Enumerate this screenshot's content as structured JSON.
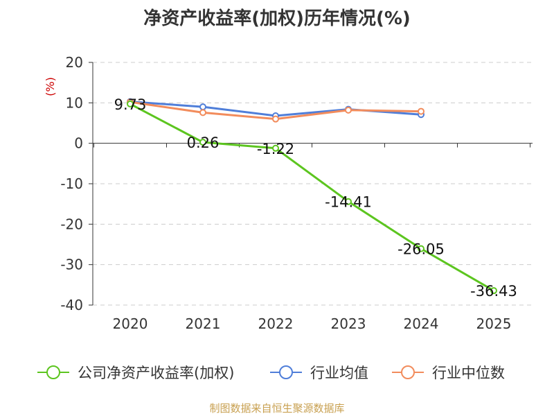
{
  "title": "净资产收益率(加权)历年情况(%)",
  "source_note": "制图数据来自恒生聚源数据库",
  "chart_data": {
    "type": "line",
    "title": "净资产收益率(加权)历年情况(%)",
    "ylabel": "(%)",
    "xlabel": "",
    "categories": [
      "2020",
      "2021",
      "2022",
      "2023",
      "2024",
      "2025"
    ],
    "ylim": [
      -40,
      20
    ],
    "yticks": [
      20,
      10,
      0,
      -10,
      -20,
      -30,
      -40
    ],
    "grid": true,
    "legend_position": "bottom",
    "series": [
      {
        "name": "公司净资产收益率(加权)",
        "color": "#5cc51f",
        "values": [
          9.73,
          0.26,
          -1.22,
          -14.41,
          -26.05,
          -36.43
        ],
        "labels": [
          "9.73",
          "0.26",
          "-1.22",
          "-14.41",
          "-26.05",
          "-36.43"
        ]
      },
      {
        "name": "行业均值",
        "color": "#4f7ed9",
        "values": [
          10.3,
          9.0,
          6.8,
          8.4,
          7.1,
          null
        ]
      },
      {
        "name": "行业中位数",
        "color": "#f28c5c",
        "values": [
          10.2,
          7.6,
          6.0,
          8.2,
          7.9,
          null
        ]
      }
    ]
  }
}
